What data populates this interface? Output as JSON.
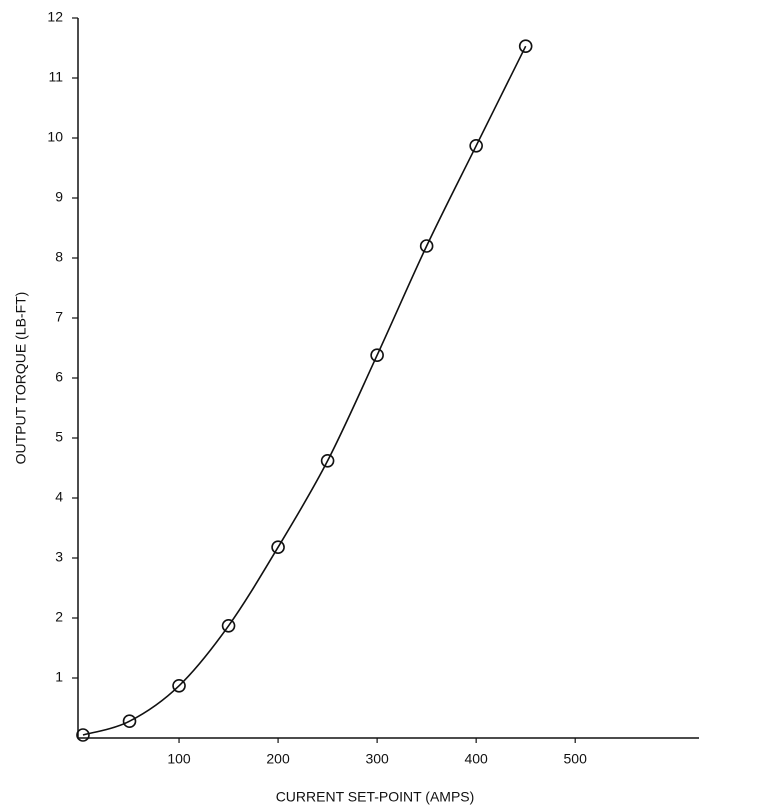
{
  "chart_data": {
    "type": "line",
    "x_label": "CURRENT SET-POINT (AMPS)",
    "y_label": "OUTPUT TORQUE (LB-FT)",
    "x": [
      3,
      50,
      100,
      150,
      200,
      250,
      300,
      350,
      400,
      450
    ],
    "values": [
      0.05,
      0.28,
      0.87,
      1.87,
      3.18,
      4.62,
      6.38,
      8.2,
      9.87,
      11.53
    ],
    "color": "#111111",
    "marker": "circle",
    "xlim": [
      0,
      625
    ],
    "xticks": [
      100,
      200,
      300,
      400,
      500
    ],
    "ylim": [
      0,
      12
    ],
    "yticks": [
      1,
      2,
      3,
      4,
      5,
      6,
      7,
      8,
      9,
      10,
      11,
      12
    ],
    "grid": false
  }
}
